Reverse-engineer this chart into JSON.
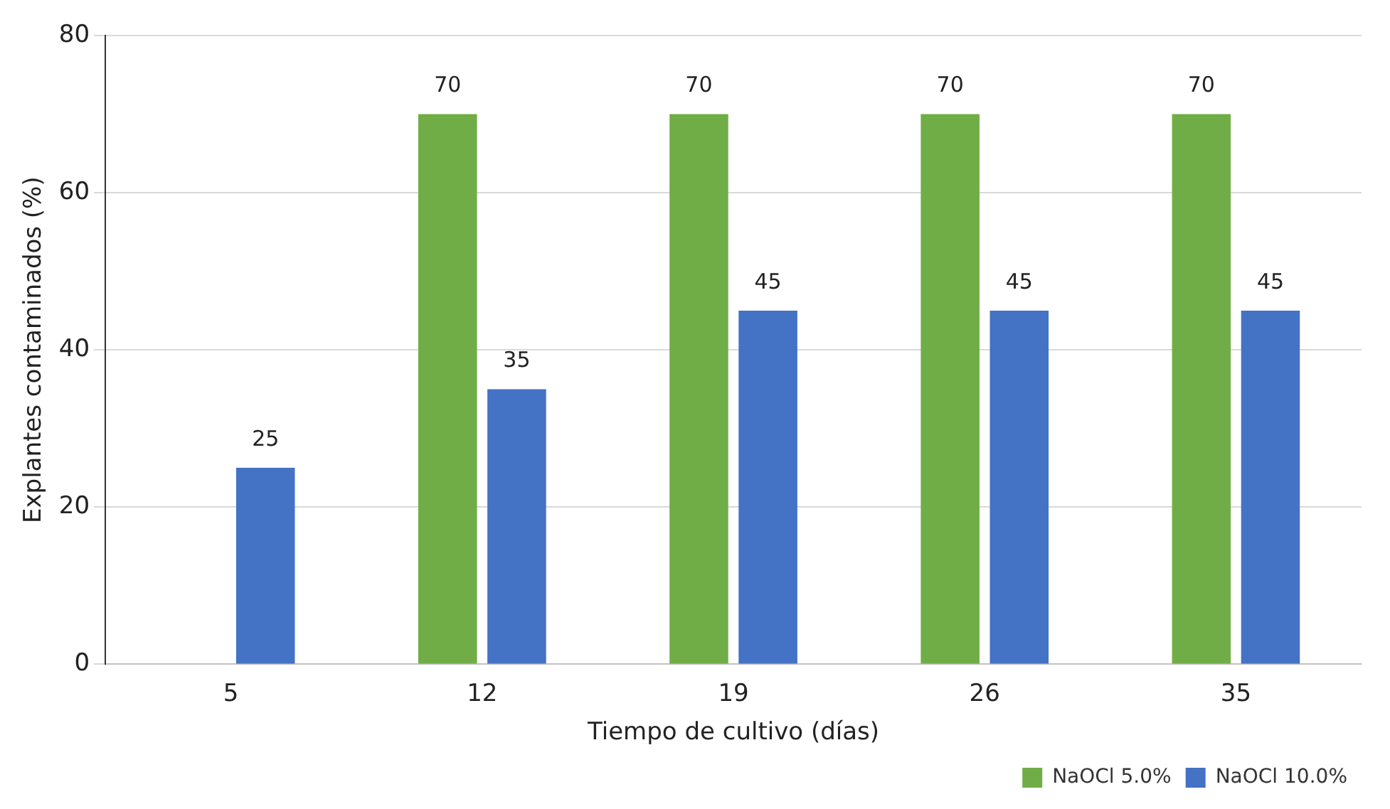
{
  "chart_data": {
    "type": "bar",
    "xlabel": "Tiempo de cultivo (días)",
    "ylabel": "Explantes contaminados (%)",
    "categories": [
      "5",
      "12",
      "19",
      "26",
      "35"
    ],
    "series": [
      {
        "name": "NaOCl 5.0%",
        "color": "#70ad47",
        "values": [
          null,
          70,
          70,
          70,
          70
        ]
      },
      {
        "name": "NaOCl 10.0%",
        "color": "#4472c4",
        "values": [
          25,
          35,
          45,
          45,
          45
        ]
      }
    ],
    "ylim": [
      0,
      80
    ],
    "yticks": [
      0,
      20,
      40,
      60,
      80
    ],
    "grid": "y",
    "legend": "bottom right",
    "data_labels": true
  }
}
